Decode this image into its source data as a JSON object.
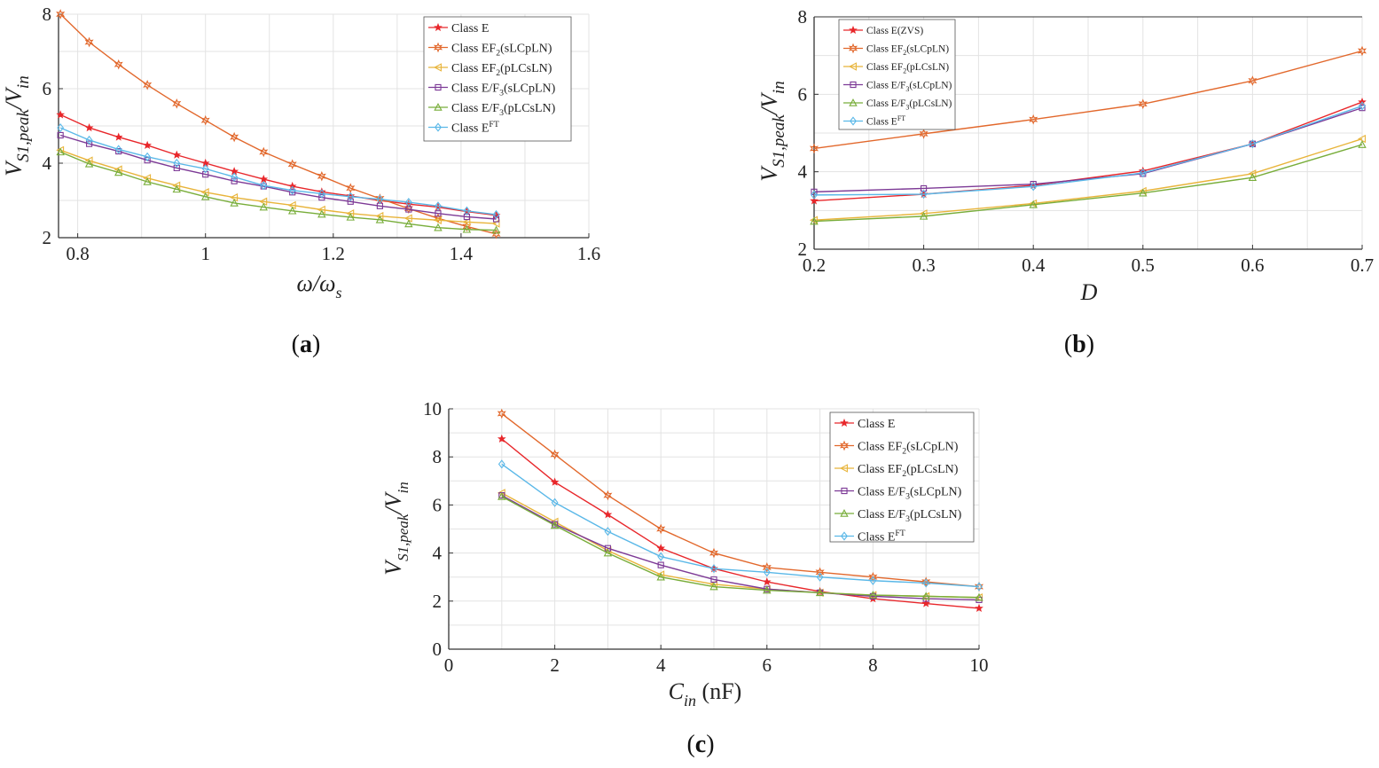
{
  "series_styles": [
    {
      "key": "classE",
      "color": "#e8272b",
      "marker": "star"
    },
    {
      "key": "ef2s",
      "color": "#e2682c",
      "marker": "hexstar"
    },
    {
      "key": "ef2p",
      "color": "#e8b43a",
      "marker": "tri-left"
    },
    {
      "key": "ef3s",
      "color": "#7d3a96",
      "marker": "square"
    },
    {
      "key": "ef3p",
      "color": "#78ad3a",
      "marker": "tri-up"
    },
    {
      "key": "eft",
      "color": "#5ab8e8",
      "marker": "diamond"
    }
  ],
  "chart_data": [
    {
      "id": "a",
      "type": "line",
      "caption": "(a)",
      "xlabel": "ω/ω_s",
      "ylabel": "V_S1,peak/V_in",
      "xlim": [
        0.77,
        1.6
      ],
      "ylim": [
        2,
        8
      ],
      "xticks": [
        "0.8",
        "1",
        "1.2",
        "1.4",
        "1.6"
      ],
      "yticks": [
        "2",
        "4",
        "6",
        "8"
      ],
      "x": [
        0.773,
        0.818,
        0.864,
        0.909,
        0.955,
        1.0,
        1.045,
        1.091,
        1.136,
        1.182,
        1.227,
        1.273,
        1.318,
        1.364,
        1.409,
        1.455
      ],
      "series": [
        {
          "name": "Class E",
          "values": [
            5.3,
            4.95,
            4.7,
            4.48,
            4.22,
            4.0,
            3.78,
            3.57,
            3.38,
            3.23,
            3.12,
            3.0,
            2.9,
            2.82,
            2.7,
            2.6
          ]
        },
        {
          "name": "Class EF2(sLCpLN)",
          "values": [
            8.0,
            7.25,
            6.65,
            6.1,
            5.6,
            5.15,
            4.7,
            4.3,
            3.97,
            3.65,
            3.33,
            3.05,
            2.78,
            2.52,
            2.3,
            2.1
          ]
        },
        {
          "name": "Class EF2(pLCsLN)",
          "values": [
            4.35,
            4.07,
            3.83,
            3.6,
            3.4,
            3.22,
            3.08,
            2.97,
            2.87,
            2.75,
            2.65,
            2.58,
            2.52,
            2.47,
            2.42,
            2.38
          ]
        },
        {
          "name": "Class E/F3(sLCpLN)",
          "values": [
            4.75,
            4.52,
            4.32,
            4.08,
            3.87,
            3.7,
            3.52,
            3.38,
            3.22,
            3.08,
            2.97,
            2.85,
            2.76,
            2.65,
            2.56,
            2.5
          ]
        },
        {
          "name": "Class E/F3(pLCsLN)",
          "values": [
            4.3,
            3.98,
            3.75,
            3.5,
            3.3,
            3.1,
            2.93,
            2.82,
            2.72,
            2.63,
            2.55,
            2.48,
            2.37,
            2.27,
            2.22,
            2.2
          ]
        },
        {
          "name": "Class E^FT",
          "values": [
            4.95,
            4.62,
            4.37,
            4.17,
            4.0,
            3.85,
            3.63,
            3.4,
            3.27,
            3.18,
            3.1,
            3.03,
            2.95,
            2.85,
            2.72,
            2.62
          ]
        }
      ],
      "legend": [
        {
          "main": "Class E",
          "sub": "",
          "tail": ""
        },
        {
          "main": "Class EF",
          "sub": "2",
          "tail": "(sLCpLN)"
        },
        {
          "main": "Class EF",
          "sub": "2",
          "tail": "(pLCsLN)"
        },
        {
          "main": "Class E/F",
          "sub": "3",
          "tail": "(sLCpLN)"
        },
        {
          "main": "Class E/F",
          "sub": "3",
          "tail": "(pLCsLN)"
        },
        {
          "main": "Class E",
          "sup": "FT",
          "tail": ""
        }
      ]
    },
    {
      "id": "b",
      "type": "line",
      "caption": "(b)",
      "xlabel": "D",
      "ylabel": "V_S1,peak/V_in",
      "xlim": [
        0.2,
        0.7
      ],
      "ylim": [
        2,
        8
      ],
      "xticks": [
        "0.2",
        "0.3",
        "0.4",
        "0.5",
        "0.6",
        "0.7"
      ],
      "yticks": [
        "2",
        "4",
        "6",
        "8"
      ],
      "x": [
        0.2,
        0.3,
        0.4,
        0.5,
        0.6,
        0.7
      ],
      "series": [
        {
          "name": "Class E(ZVS)",
          "values": [
            3.25,
            3.42,
            3.65,
            4.02,
            4.72,
            5.8
          ]
        },
        {
          "name": "Class EF2(sLCpLN)",
          "values": [
            4.6,
            4.98,
            5.35,
            5.75,
            6.35,
            7.12
          ]
        },
        {
          "name": "Class EF2(pLCsLN)",
          "values": [
            2.75,
            2.92,
            3.18,
            3.5,
            3.95,
            4.85
          ]
        },
        {
          "name": "Class E/F3(sLCpLN)",
          "values": [
            3.48,
            3.57,
            3.68,
            3.95,
            4.72,
            5.65
          ]
        },
        {
          "name": "Class E/F3(pLCsLN)",
          "values": [
            2.72,
            2.85,
            3.15,
            3.45,
            3.85,
            4.7
          ]
        },
        {
          "name": "Class E^FT",
          "values": [
            3.4,
            3.42,
            3.62,
            3.97,
            4.72,
            5.7
          ]
        }
      ],
      "legend": [
        {
          "main": "Class E(ZVS)",
          "sub": "",
          "tail": ""
        },
        {
          "main": "Class EF",
          "sub": "2",
          "tail": "(sLCpLN)"
        },
        {
          "main": "Class EF",
          "sub": "2",
          "tail": "(pLCsLN)"
        },
        {
          "main": "Class E/F",
          "sub": "3",
          "tail": "(sLCpLN)"
        },
        {
          "main": "Class E/F",
          "sub": "3",
          "tail": "(pLCsLN)"
        },
        {
          "main": "Class E",
          "sup": "FT",
          "tail": ""
        }
      ]
    },
    {
      "id": "c",
      "type": "line",
      "caption": "(c)",
      "xlabel": "C_in (nF)",
      "ylabel": "V_S1,peak/V_in",
      "xlim": [
        0,
        10
      ],
      "ylim": [
        0,
        10
      ],
      "xticks": [
        "0",
        "2",
        "4",
        "6",
        "8",
        "10"
      ],
      "yticks": [
        "0",
        "2",
        "4",
        "6",
        "8",
        "10"
      ],
      "x": [
        1,
        2,
        3,
        4,
        5,
        6,
        7,
        8,
        9,
        10
      ],
      "series": [
        {
          "name": "Class E",
          "values": [
            8.75,
            6.95,
            5.6,
            4.2,
            3.35,
            2.8,
            2.4,
            2.1,
            1.9,
            1.7
          ]
        },
        {
          "name": "Class EF2(sLCpLN)",
          "values": [
            9.8,
            8.1,
            6.4,
            5.0,
            4.0,
            3.4,
            3.2,
            3.0,
            2.8,
            2.6
          ]
        },
        {
          "name": "Class EF2(pLCsLN)",
          "values": [
            6.5,
            5.3,
            4.1,
            3.1,
            2.7,
            2.5,
            2.35,
            2.25,
            2.2,
            2.15
          ]
        },
        {
          "name": "Class E/F3(sLCpLN)",
          "values": [
            6.4,
            5.2,
            4.2,
            3.5,
            2.9,
            2.5,
            2.35,
            2.2,
            2.1,
            2.05
          ]
        },
        {
          "name": "Class E/F3(pLCsLN)",
          "values": [
            6.35,
            5.15,
            4.0,
            3.0,
            2.6,
            2.45,
            2.35,
            2.25,
            2.2,
            2.15
          ]
        },
        {
          "name": "Class E^FT",
          "values": [
            7.7,
            6.1,
            4.9,
            3.85,
            3.35,
            3.2,
            3.0,
            2.85,
            2.75,
            2.6
          ]
        }
      ],
      "legend": [
        {
          "main": "Class E",
          "sub": "",
          "tail": ""
        },
        {
          "main": "Class EF",
          "sub": "2",
          "tail": "(sLCpLN)"
        },
        {
          "main": "Class EF",
          "sub": "2",
          "tail": "(pLCsLN)"
        },
        {
          "main": "Class E/F",
          "sub": "3",
          "tail": "(sLCpLN)"
        },
        {
          "main": "Class E/F",
          "sub": "3",
          "tail": "(pLCsLN)"
        },
        {
          "main": "Class E",
          "sup": "FT",
          "tail": ""
        }
      ]
    }
  ]
}
